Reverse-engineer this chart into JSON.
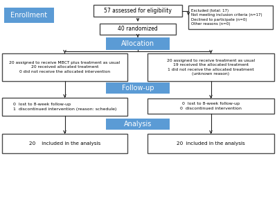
{
  "bg_color": "#ffffff",
  "blue_color": "#5b9bd5",
  "box_edge_color": "#4a4a4a",
  "box_bg": "#ffffff",
  "enrollment_label": "Enrollment",
  "allocation_label": "Allocation",
  "followup_label": "Follow-up",
  "analysis_label": "Analysis",
  "box1_text": "57 assessed for eligibility",
  "box2_text": "40 randomized",
  "box_excl_text": "Excluded (total: 17)\nNot meeting inclusion criteria (n=17)\nDeclined to participate (n=0)\nOther reasons (n=0)",
  "box_left_alloc_text": "20 assigned to receive MBCT plus treatment as usual\n20 received allocated treatment\n0 did not receive the allocated intervention",
  "box_right_alloc_text": "20 assigned to receive treatment as usual\n19 received the allocated treatment\n1 did not receive the allocated treatment\n(unknown reason)",
  "box_left_fu_text": "0  lost to 8-week follow-up\n1  discontinued intervention (reason: schedule)",
  "box_right_fu_text": "0  lost to 8-week follow-up\n0  discontinued intervention",
  "box_left_anal_text": "20    included in the analysis",
  "box_right_anal_text": "20  included in the analysis",
  "arrow_color": "#222222",
  "edge_lw": 1.0
}
